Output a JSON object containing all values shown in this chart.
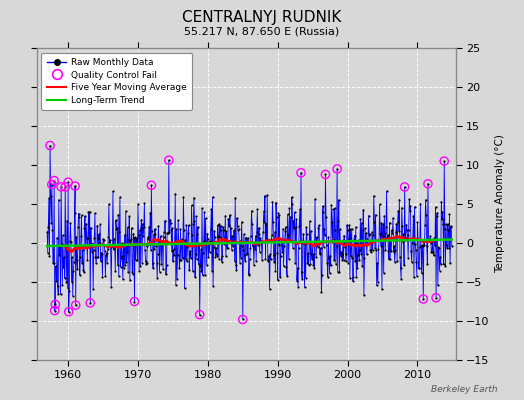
{
  "title": "CENTRALNYJ RUDNIK",
  "subtitle": "55.217 N, 87.650 E (Russia)",
  "ylabel": "Temperature Anomaly (°C)",
  "watermark": "Berkeley Earth",
  "ylim": [
    -15,
    25
  ],
  "yticks": [
    -15,
    -10,
    -5,
    0,
    5,
    10,
    15,
    20,
    25
  ],
  "xlim": [
    1955.5,
    2015.5
  ],
  "xticks": [
    1960,
    1970,
    1980,
    1990,
    2000,
    2010
  ],
  "bg_color": "#d8d8d8",
  "plot_bg_color": "#d8d8d8",
  "grid_color": "#ffffff",
  "line_color_raw": "#0000ff",
  "dot_color_raw": "#000000",
  "qc_fail_color": "#ff00ff",
  "moving_avg_color": "#ff0000",
  "trend_color": "#00cc00",
  "title_fontsize": 11,
  "subtitle_fontsize": 8,
  "legend_entries": [
    "Raw Monthly Data",
    "Quality Control Fail",
    "Five Year Moving Average",
    "Long-Term Trend"
  ],
  "seed": 42,
  "start_year": 1957.0,
  "end_year": 2015.0,
  "noise_std": 2.8,
  "qc_threshold": 7.0,
  "moving_avg_window": 60
}
